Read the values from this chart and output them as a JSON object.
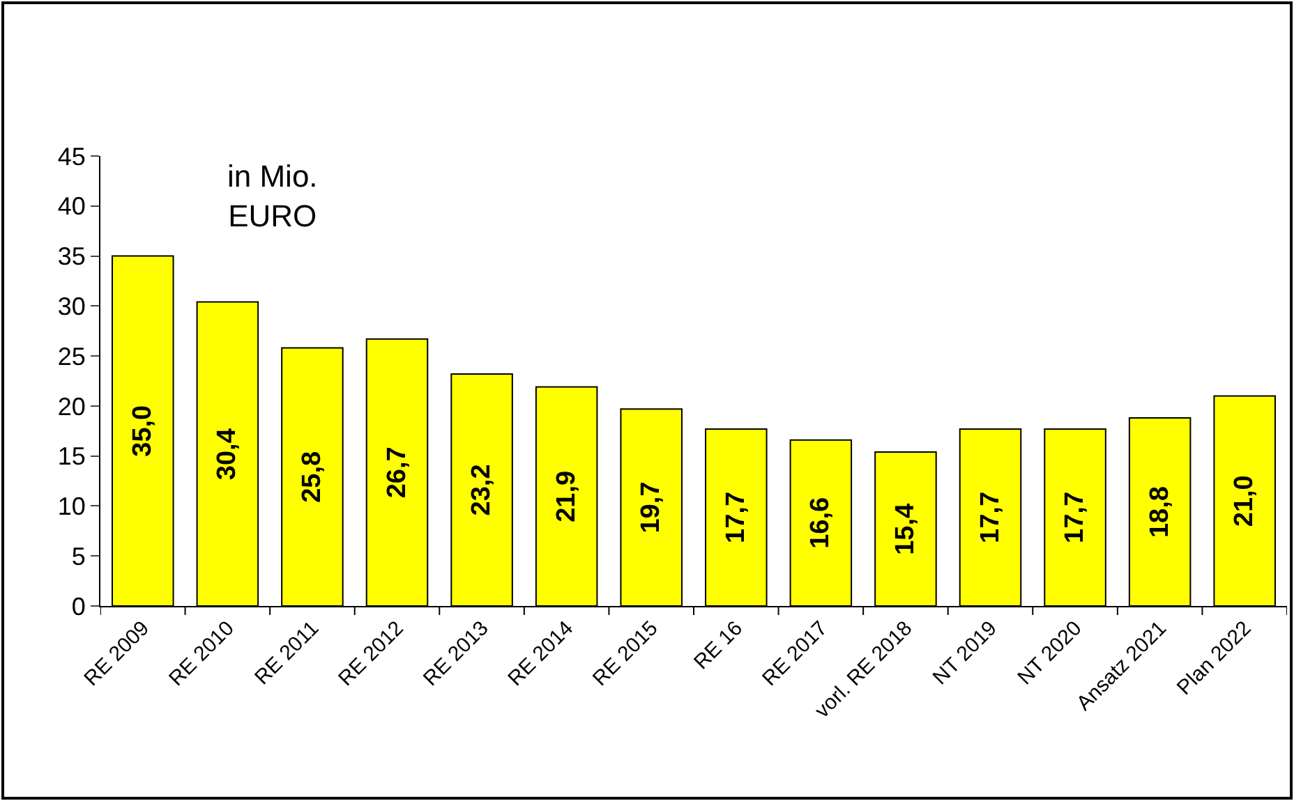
{
  "chart_data": {
    "type": "bar",
    "categories": [
      "RE 2009",
      "RE 2010",
      "RE 2011",
      "RE 2012",
      "RE 2013",
      "RE 2014",
      "RE 2015",
      "RE 16",
      "RE 2017",
      "vorl. RE 2018",
      "NT 2019",
      "NT 2020",
      "Ansatz 2021",
      "Plan 2022"
    ],
    "values": [
      35.0,
      30.4,
      25.8,
      26.7,
      23.2,
      21.9,
      19.7,
      17.7,
      16.6,
      15.4,
      17.7,
      17.7,
      18.8,
      21.0
    ],
    "value_labels": [
      "35,0",
      "30,4",
      "25,8",
      "26,7",
      "23,2",
      "21,9",
      "19,7",
      "17,7",
      "16,6",
      "15,4",
      "17,7",
      "17,7",
      "18,8",
      "21,0"
    ],
    "color": "#ffff00",
    "ylim": [
      0,
      45
    ],
    "yticks": [
      0,
      5,
      10,
      15,
      20,
      25,
      30,
      35,
      40,
      45
    ],
    "annotations": [
      "in Mio.\nEURO"
    ]
  }
}
